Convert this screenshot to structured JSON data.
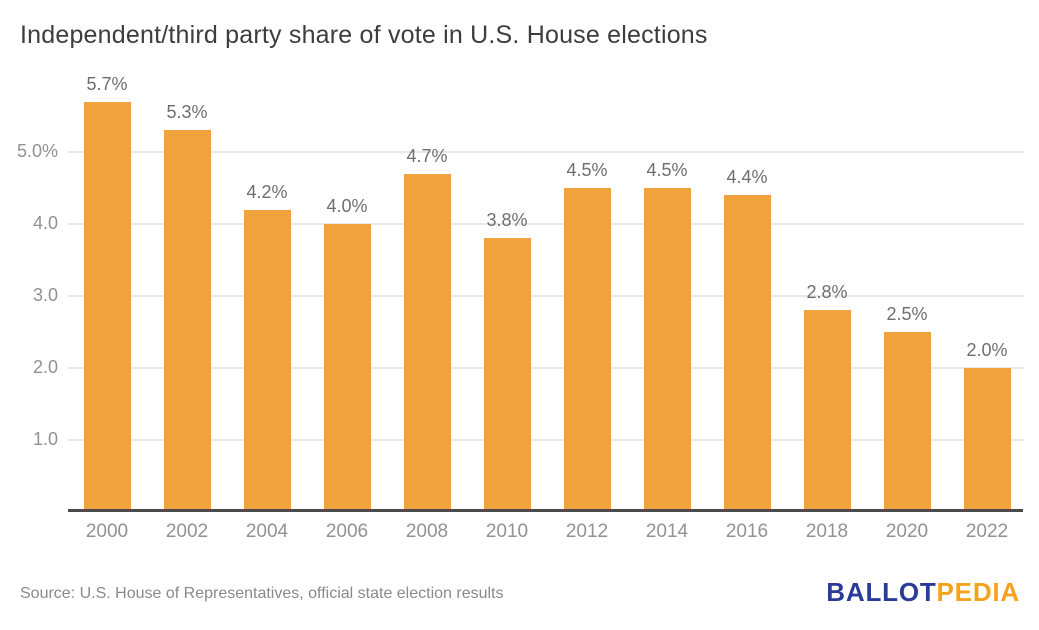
{
  "title": "Independent/third party share of vote in U.S. House elections",
  "source": "Source: U.S. House of Representatives, official state election results",
  "logo": {
    "ballot": "BALLOT",
    "pedia": "PEDIA"
  },
  "colors": {
    "bar": "#F0A33D",
    "gridline": "#E7E7E7",
    "axis": "#4A4A4A",
    "title_text": "#3D3D3D",
    "value_text": "#6E6E6E",
    "tick_text": "#929292",
    "source_text": "#8A8A8A",
    "logo_blue": "#2B3C96",
    "logo_orange": "#F6A21D",
    "background": "#FFFFFF"
  },
  "chart_data": {
    "type": "bar",
    "title": "Independent/third party share of vote in U.S. House elections",
    "categories": [
      "2000",
      "2002",
      "2004",
      "2006",
      "2008",
      "2010",
      "2012",
      "2014",
      "2016",
      "2018",
      "2020",
      "2022"
    ],
    "values": [
      5.7,
      5.3,
      4.2,
      4.0,
      4.7,
      3.8,
      4.5,
      4.5,
      4.4,
      2.8,
      2.5,
      2.0
    ],
    "bar_labels": [
      "5.7%",
      "5.3%",
      "4.2%",
      "4.0%",
      "4.7%",
      "3.8%",
      "4.5%",
      "4.5%",
      "4.4%",
      "2.8%",
      "2.5%",
      "2.0%"
    ],
    "xlabel": "",
    "ylabel": "",
    "ylim": [
      0,
      6
    ],
    "yticks": [
      {
        "value": 5.0,
        "label": "5.0%"
      },
      {
        "value": 4.0,
        "label": "4.0"
      },
      {
        "value": 3.0,
        "label": "3.0"
      },
      {
        "value": 2.0,
        "label": "2.0"
      },
      {
        "value": 1.0,
        "label": "1.0"
      }
    ],
    "grid": true,
    "legend": false,
    "series_color": "#F0A33D"
  }
}
